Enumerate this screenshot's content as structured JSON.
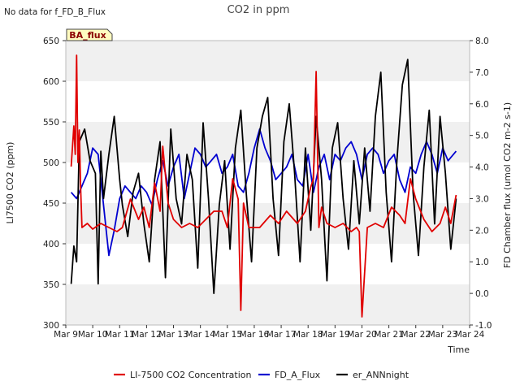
{
  "notice": "No data for f_FD_B_Flux",
  "badge": "BA_flux",
  "chart_data": {
    "type": "line",
    "title": "CO2 in ppm",
    "xlabel": "Time",
    "ylabel_left": "LI7500 CO2 (ppm)",
    "ylabel_right": "FD Chamber flux (umol CO2 m-2 s-1)",
    "xlim": [
      9,
      24
    ],
    "ylim_left": [
      300,
      650
    ],
    "ylim_right": [
      -1.0,
      8.0
    ],
    "x_tick_labels": [
      "Mar 9",
      "Mar 10",
      "Mar 11",
      "Mar 12",
      "Mar 13",
      "Mar 14",
      "Mar 15",
      "Mar 16",
      "Mar 17",
      "Mar 18",
      "Mar 19",
      "Mar 20",
      "Mar 21",
      "Mar 22",
      "Mar 23",
      "Mar 24"
    ],
    "y_left_ticks": [
      300,
      350,
      400,
      450,
      500,
      550,
      600,
      650
    ],
    "y_right_ticks": [
      "-1.0",
      "0.0",
      "1.0",
      "2.0",
      "3.0",
      "4.0",
      "5.0",
      "6.0",
      "7.0",
      "8.0"
    ],
    "grid": "horizontal bands",
    "legend_position": "bottom",
    "series": [
      {
        "name": "LI-7500 CO2 Concentration",
        "axis": "left",
        "color": "#e00000",
        "x": [
          9.2,
          9.3,
          9.35,
          9.4,
          9.45,
          9.5,
          9.55,
          9.6,
          9.8,
          10.0,
          10.3,
          10.6,
          10.9,
          11.1,
          11.4,
          11.7,
          11.9,
          12.1,
          12.3,
          12.5,
          12.6,
          12.8,
          13.0,
          13.3,
          13.6,
          13.9,
          14.2,
          14.5,
          14.8,
          15.0,
          15.2,
          15.4,
          15.5,
          15.6,
          15.8,
          16.2,
          16.6,
          16.9,
          17.2,
          17.6,
          17.9,
          18.1,
          18.2,
          18.3,
          18.4,
          18.5,
          18.7,
          19.0,
          19.3,
          19.6,
          19.8,
          19.9,
          20.0,
          20.2,
          20.5,
          20.8,
          21.1,
          21.4,
          21.6,
          21.8,
          22.0,
          22.3,
          22.6,
          22.9,
          23.1,
          23.3,
          23.5
        ],
        "values": [
          495,
          545,
          510,
          632,
          500,
          540,
          470,
          420,
          425,
          418,
          425,
          420,
          415,
          420,
          455,
          430,
          445,
          420,
          475,
          440,
          520,
          450,
          430,
          420,
          425,
          420,
          430,
          440,
          440,
          420,
          480,
          455,
          318,
          450,
          420,
          420,
          435,
          425,
          440,
          425,
          440,
          470,
          480,
          612,
          420,
          445,
          425,
          420,
          425,
          415,
          420,
          415,
          310,
          420,
          425,
          420,
          445,
          435,
          425,
          480,
          455,
          430,
          415,
          425,
          445,
          425,
          460
        ]
      },
      {
        "name": "FD_A_Flux",
        "axis": "right",
        "color": "#0000d0",
        "x": [
          9.2,
          9.4,
          9.6,
          9.8,
          10.0,
          10.2,
          10.4,
          10.6,
          10.8,
          11.0,
          11.2,
          11.4,
          11.6,
          11.8,
          12.0,
          12.2,
          12.4,
          12.6,
          12.8,
          13.0,
          13.2,
          13.4,
          13.6,
          13.8,
          14.0,
          14.2,
          14.4,
          14.6,
          14.8,
          15.0,
          15.2,
          15.4,
          15.6,
          15.8,
          16.0,
          16.2,
          16.4,
          16.6,
          16.8,
          17.0,
          17.2,
          17.4,
          17.6,
          17.8,
          18.0,
          18.2,
          18.4,
          18.6,
          18.8,
          19.0,
          19.2,
          19.4,
          19.6,
          19.8,
          20.0,
          20.2,
          20.4,
          20.6,
          20.8,
          21.0,
          21.2,
          21.4,
          21.6,
          21.8,
          22.0,
          22.2,
          22.4,
          22.6,
          22.8,
          23.0,
          23.2,
          23.5
        ],
        "values": [
          3.2,
          3.0,
          3.4,
          3.8,
          4.6,
          4.4,
          2.8,
          1.2,
          2.0,
          3.0,
          3.4,
          3.2,
          3.0,
          3.4,
          3.2,
          2.8,
          3.6,
          4.2,
          3.4,
          4.0,
          4.4,
          3.0,
          3.8,
          4.6,
          4.4,
          4.0,
          4.2,
          4.4,
          3.8,
          4.0,
          4.4,
          3.4,
          3.2,
          3.8,
          4.6,
          5.2,
          4.6,
          4.2,
          3.6,
          3.8,
          4.0,
          4.4,
          3.6,
          3.4,
          4.4,
          3.2,
          4.0,
          4.4,
          3.6,
          4.4,
          4.2,
          4.6,
          4.8,
          4.4,
          3.6,
          4.4,
          4.6,
          4.4,
          3.8,
          4.2,
          4.4,
          3.6,
          3.2,
          4.0,
          3.8,
          4.4,
          4.8,
          4.4,
          3.8,
          4.6,
          4.2,
          4.5
        ]
      },
      {
        "name": "er_ANNnight",
        "axis": "right",
        "color": "#000000",
        "x": [
          9.2,
          9.3,
          9.4,
          9.5,
          9.7,
          9.9,
          10.1,
          10.2,
          10.3,
          10.4,
          10.6,
          10.8,
          11.0,
          11.1,
          11.3,
          11.5,
          11.7,
          11.9,
          12.1,
          12.3,
          12.5,
          12.7,
          12.9,
          13.1,
          13.3,
          13.5,
          13.7,
          13.9,
          14.1,
          14.3,
          14.5,
          14.7,
          14.9,
          15.1,
          15.3,
          15.5,
          15.7,
          15.9,
          16.1,
          16.3,
          16.5,
          16.7,
          16.9,
          17.1,
          17.3,
          17.5,
          17.7,
          17.9,
          18.1,
          18.3,
          18.5,
          18.7,
          18.9,
          19.1,
          19.3,
          19.5,
          19.7,
          19.9,
          20.1,
          20.3,
          20.5,
          20.7,
          20.9,
          21.1,
          21.3,
          21.5,
          21.7,
          21.9,
          22.1,
          22.3,
          22.5,
          22.7,
          22.9,
          23.1,
          23.3,
          23.5
        ],
        "values": [
          0.3,
          1.5,
          1.0,
          4.8,
          5.2,
          4.2,
          3.8,
          0.3,
          4.5,
          3.0,
          4.4,
          5.6,
          3.6,
          2.8,
          1.8,
          3.2,
          3.8,
          2.2,
          1.0,
          3.6,
          4.8,
          0.5,
          5.2,
          3.0,
          2.2,
          4.4,
          3.6,
          0.8,
          5.4,
          3.0,
          0.0,
          2.8,
          4.2,
          1.4,
          4.6,
          5.8,
          3.2,
          1.0,
          4.6,
          5.6,
          6.2,
          3.0,
          1.2,
          4.8,
          6.0,
          3.8,
          1.0,
          4.6,
          2.0,
          5.6,
          3.6,
          0.4,
          4.6,
          5.4,
          3.0,
          1.4,
          4.2,
          2.2,
          4.6,
          2.6,
          5.6,
          7.0,
          3.2,
          1.0,
          4.2,
          6.6,
          7.4,
          3.2,
          1.2,
          4.0,
          5.8,
          2.2,
          5.6,
          3.8,
          1.4,
          3.0
        ]
      }
    ]
  }
}
